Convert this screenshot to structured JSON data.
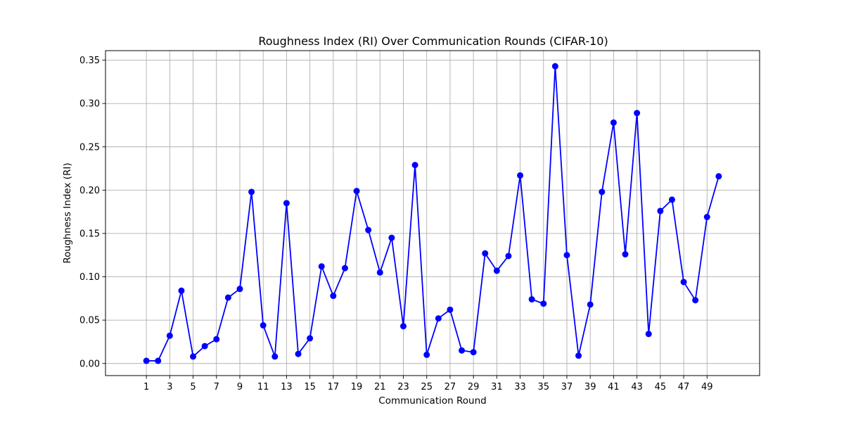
{
  "chart_data": {
    "type": "line",
    "title": "Roughness Index (RI) Over Communication Rounds (CIFAR-10)",
    "xlabel": "Communication Round",
    "ylabel": "Roughness Index (RI)",
    "xlim": [
      -2.5,
      53.5
    ],
    "ylim": [
      -0.014,
      0.361
    ],
    "grid": true,
    "marker": "circle",
    "color": "#0000ff",
    "x_ticks": [
      1,
      3,
      5,
      7,
      9,
      11,
      13,
      15,
      17,
      19,
      21,
      23,
      25,
      27,
      29,
      31,
      33,
      35,
      37,
      39,
      41,
      43,
      45,
      47,
      49
    ],
    "x_tick_labels": [
      "1",
      "3",
      "5",
      "7",
      "9",
      "11",
      "13",
      "15",
      "17",
      "19",
      "21",
      "23",
      "25",
      "27",
      "29",
      "31",
      "33",
      "35",
      "37",
      "39",
      "41",
      "43",
      "45",
      "47",
      "49"
    ],
    "y_ticks": [
      0.0,
      0.05,
      0.1,
      0.15,
      0.2,
      0.25,
      0.3,
      0.35
    ],
    "y_tick_labels": [
      "0.00",
      "0.05",
      "0.10",
      "0.15",
      "0.20",
      "0.25",
      "0.30",
      "0.35"
    ],
    "x": [
      1,
      2,
      3,
      4,
      5,
      6,
      7,
      8,
      9,
      10,
      11,
      12,
      13,
      14,
      15,
      16,
      17,
      18,
      19,
      20,
      21,
      22,
      23,
      24,
      25,
      26,
      27,
      28,
      29,
      30,
      31,
      32,
      33,
      34,
      35,
      36,
      37,
      38,
      39,
      40,
      41,
      42,
      43,
      44,
      45,
      46,
      47,
      48,
      49,
      50
    ],
    "y": [
      0.003,
      0.003,
      0.032,
      0.084,
      0.008,
      0.02,
      0.028,
      0.076,
      0.086,
      0.198,
      0.044,
      0.008,
      0.185,
      0.011,
      0.029,
      0.112,
      0.078,
      0.11,
      0.199,
      0.154,
      0.105,
      0.145,
      0.043,
      0.229,
      0.01,
      0.052,
      0.062,
      0.015,
      0.013,
      0.127,
      0.107,
      0.124,
      0.217,
      0.074,
      0.069,
      0.343,
      0.125,
      0.009,
      0.068,
      0.198,
      0.278,
      0.126,
      0.289,
      0.034,
      0.176,
      0.189,
      0.094,
      0.073,
      0.169,
      0.216
    ]
  }
}
